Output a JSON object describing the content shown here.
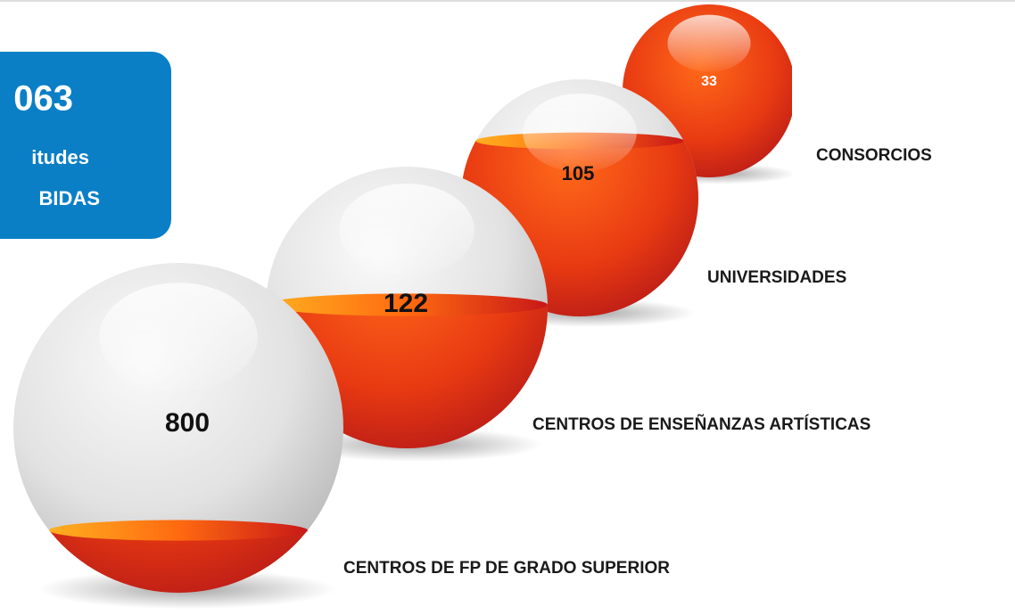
{
  "summary": {
    "number": "063",
    "line1": "itudes",
    "line2": "BIDAS"
  },
  "items": [
    {
      "value": "800",
      "label": "CENTROS DE FP DE GRADO SUPERIOR"
    },
    {
      "value": "122",
      "label": "CENTROS DE ENSEÑANZAS ARTÍSTICAS"
    },
    {
      "value": "105",
      "label": "UNIVERSIDADES"
    },
    {
      "value": "33",
      "label": "CONSORCIOS"
    }
  ]
}
